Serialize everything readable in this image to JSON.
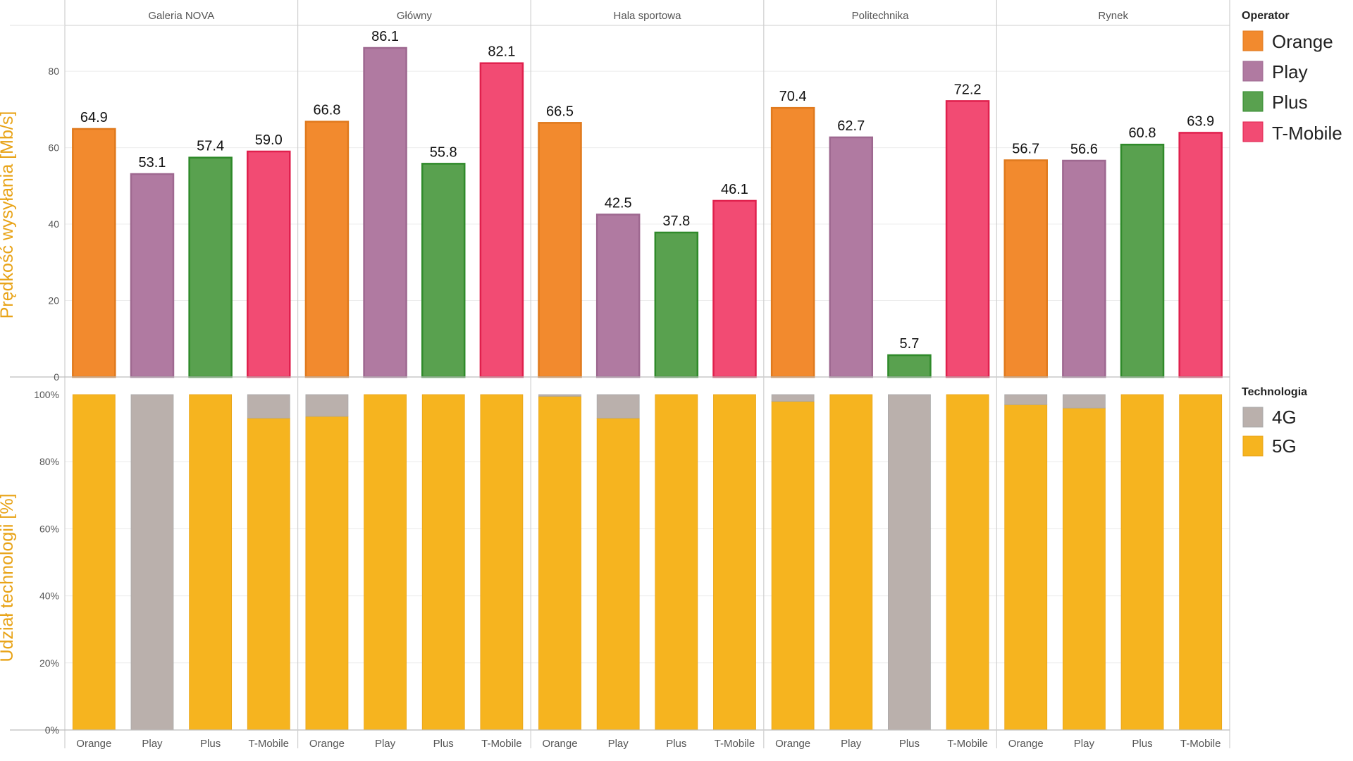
{
  "colors": {
    "Orange": "#F28A2E",
    "Play": "#B07AA1",
    "Plus": "#59A14F",
    "T-Mobile": "#F24B73",
    "4G": "#BAB0AC",
    "5G": "#F6B41F",
    "axis_title": "#E8A317"
  },
  "legend_operator": {
    "title": "Operator",
    "items": [
      "Orange",
      "Play",
      "Plus",
      "T-Mobile"
    ]
  },
  "legend_technology": {
    "title": "Technologia",
    "items": [
      "4G",
      "5G"
    ]
  },
  "chart_data": [
    {
      "type": "bar",
      "ylabel": "Prędkość wysyłania [Mb/s]",
      "ylim": [
        0,
        92
      ],
      "yticks": [
        0,
        20,
        40,
        60,
        80
      ],
      "grid": true,
      "legend": "right-top",
      "facets": [
        "Galeria NOVA",
        "Główny",
        "Hala sportowa",
        "Politechnika",
        "Rynek"
      ],
      "categories": [
        "Orange",
        "Play",
        "Plus",
        "T-Mobile"
      ],
      "values": [
        [
          64.9,
          53.1,
          57.4,
          59.0
        ],
        [
          66.8,
          86.1,
          55.8,
          82.1
        ],
        [
          66.5,
          42.5,
          37.8,
          46.1
        ],
        [
          70.4,
          62.7,
          5.7,
          72.2
        ],
        [
          56.7,
          56.6,
          60.8,
          63.9
        ]
      ],
      "labels": [
        [
          "64.9",
          "53.1",
          "57.4",
          "59.0"
        ],
        [
          "66.8",
          "86.1",
          "55.8",
          "82.1"
        ],
        [
          "66.5",
          "42.5",
          "37.8",
          "46.1"
        ],
        [
          "70.4",
          "62.7",
          "5.7",
          "72.2"
        ],
        [
          "56.7",
          "56.6",
          "60.8",
          "63.9"
        ]
      ]
    },
    {
      "type": "stacked-bar",
      "ylabel": "Udział technologii [%]",
      "ylim": [
        0,
        100
      ],
      "yticks": [
        "0%",
        "20%",
        "40%",
        "60%",
        "80%",
        "100%"
      ],
      "grid": true,
      "legend": "right-middle",
      "facets": [
        "Galeria NOVA",
        "Główny",
        "Hala sportowa",
        "Politechnika",
        "Rynek"
      ],
      "categories": [
        "Orange",
        "Play",
        "Plus",
        "T-Mobile"
      ],
      "series": [
        {
          "name": "5G",
          "values": [
            [
              100,
              0,
              100,
              93
            ],
            [
              93.5,
              100,
              100,
              100
            ],
            [
              99.5,
              93,
              100,
              100
            ],
            [
              98,
              100,
              0,
              100
            ],
            [
              97,
              96,
              100,
              100
            ]
          ]
        },
        {
          "name": "4G",
          "values": [
            [
              0,
              100,
              0,
              7
            ],
            [
              6.5,
              0,
              0,
              0
            ],
            [
              0.5,
              7,
              0,
              0
            ],
            [
              2,
              0,
              100,
              0
            ],
            [
              3,
              4,
              0,
              0
            ]
          ]
        }
      ]
    }
  ]
}
